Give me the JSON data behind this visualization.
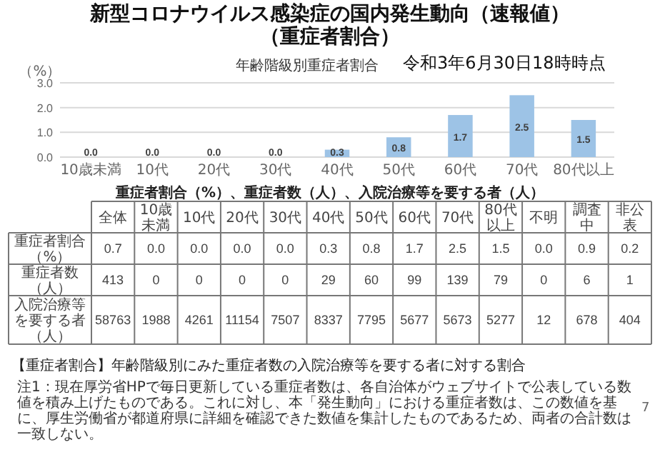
{
  "chart_data": [
    {
      "type": "bar",
      "title": "新型コロナウイルス感染症の国内発生動向（速報値）（重症者割合）",
      "subtitle": "年齢階級別重症者割合",
      "ylabel": "（%）",
      "annotations": [
        "令和3年6月30日18時時点"
      ],
      "categories": [
        "10歳未満",
        "10代",
        "20代",
        "30代",
        "40代",
        "50代",
        "60代",
        "70代",
        "80代以上"
      ],
      "values": [
        0.0,
        0.0,
        0.0,
        0.0,
        0.3,
        0.8,
        1.7,
        2.5,
        1.5
      ],
      "value_labels": [
        "0.0",
        "0.0",
        "0.0",
        "0.0",
        "0.3",
        "0.8",
        "1.7",
        "2.5",
        "1.5"
      ],
      "color": "#9dc3e6",
      "ylim": [
        0,
        3
      ],
      "yticks": [
        {
          "value": 0,
          "label": "0.0"
        },
        {
          "value": 1,
          "label": "1.0"
        },
        {
          "value": 2,
          "label": "2.0"
        },
        {
          "value": 3,
          "label": "3.0"
        }
      ],
      "grid": "y"
    },
    {
      "type": "heatmap",
      "title": "重症者割合（%）、重症者数（人）、入院治療等を要する者（人）",
      "categories": [
        "全体",
        "10歳未満",
        "10代",
        "20代",
        "30代",
        "40代",
        "50代",
        "60代",
        "70代",
        "80代以上",
        "不明",
        "調査中",
        "非公表"
      ],
      "y_categories": [
        "重症者割合（%）",
        "重症者数（人）",
        "入院治療等を要する者（人）"
      ],
      "cells": [
        [
          0.7,
          0.0,
          0.0,
          0.0,
          0.0,
          0.3,
          0.8,
          1.7,
          2.5,
          1.5,
          0.0,
          0.9,
          0.2
        ],
        [
          413,
          0,
          0,
          0,
          0,
          29,
          60,
          99,
          139,
          79,
          0,
          6,
          1
        ],
        [
          58763,
          1988,
          4261,
          11154,
          7507,
          8337,
          7795,
          5677,
          5673,
          5277,
          12,
          678,
          404
        ]
      ],
      "cell_labels": [
        [
          "0.7",
          "0.0",
          "0.0",
          "0.0",
          "0.0",
          "0.3",
          "0.8",
          "1.7",
          "2.5",
          "1.5",
          "0.0",
          "0.9",
          "0.2"
        ],
        [
          "413",
          "0",
          "0",
          "0",
          "0",
          "29",
          "60",
          "99",
          "139",
          "79",
          "0",
          "6",
          "1"
        ],
        [
          "58763",
          "1988",
          "4261",
          "11154",
          "7507",
          "8337",
          "7795",
          "5677",
          "5673",
          "5277",
          "12",
          "678",
          "404"
        ]
      ],
      "annotations": [
        "【重症者割合】年齢階級別にみた重症者数の入院治療等を要する者に対する割合",
        "注1：現在厚労省HPで毎日更新している重症者数は、各自治体がウェブサイトで公表している数値を積み上げたものである。これに対し、本「発生動向」における重症者数は、この数値を基に、厚生労働省が都道府県に詳細を確認できた数値を集計したものであるため、両者の合計数は一致しない。",
        "7"
      ]
    }
  ]
}
